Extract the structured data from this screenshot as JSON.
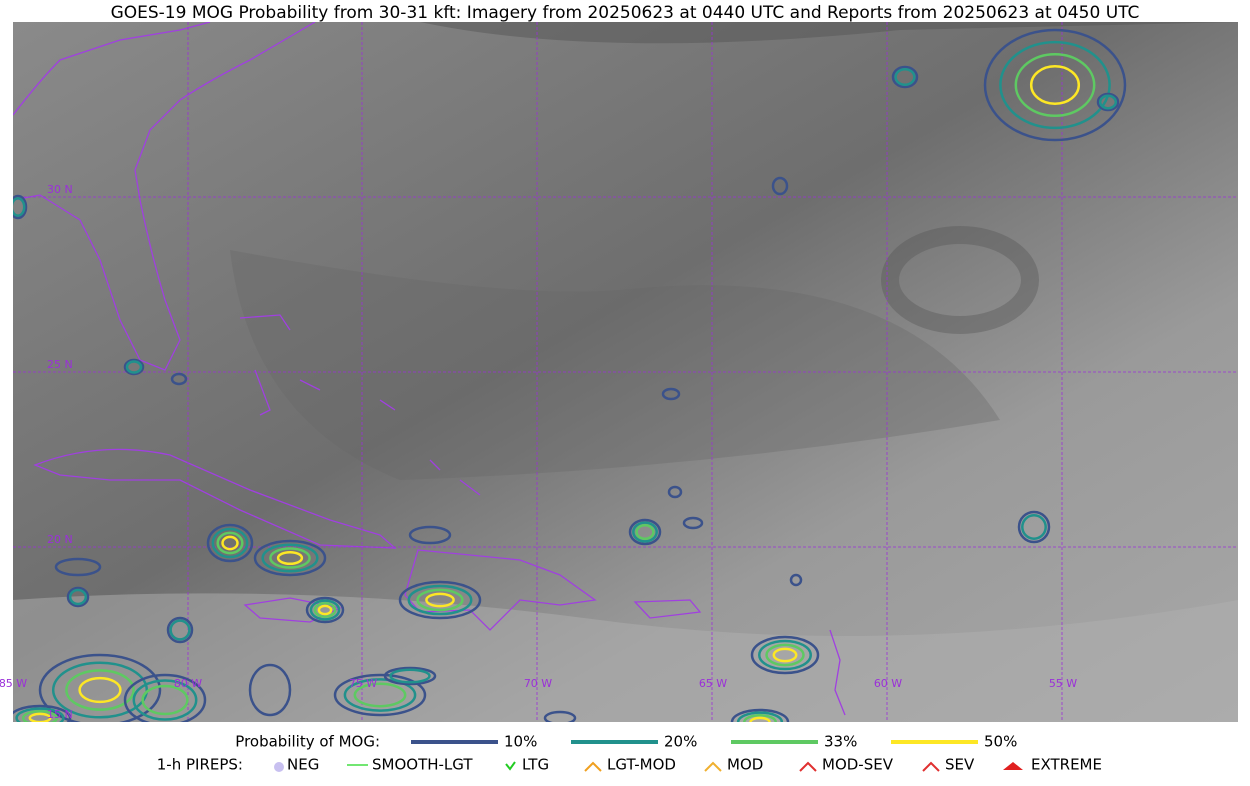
{
  "header": {
    "title": "GOES-19 MOG Probability from 30-31 kft: Imagery from 20250623 at 0440 UTC and Reports from 20250623 at 0450 UTC"
  },
  "map": {
    "lat_labels": [
      "30 N",
      "25 N",
      "20 N",
      "15 N"
    ],
    "lon_labels": [
      "85 W",
      "80 W",
      "75 W",
      "70 W",
      "65 W",
      "60 W",
      "55 W"
    ]
  },
  "legend": {
    "probability": {
      "label": "Probability of MOG:",
      "items": [
        "10%",
        "20%",
        "33%",
        "50%"
      ]
    },
    "pireps": {
      "label": "1-h PIREPS:",
      "items": [
        "NEG",
        "SMOOTH-LGT",
        "LTG",
        "LGT-MOD",
        "MOD",
        "MOD-SEV",
        "SEV",
        "EXTREME"
      ]
    }
  }
}
